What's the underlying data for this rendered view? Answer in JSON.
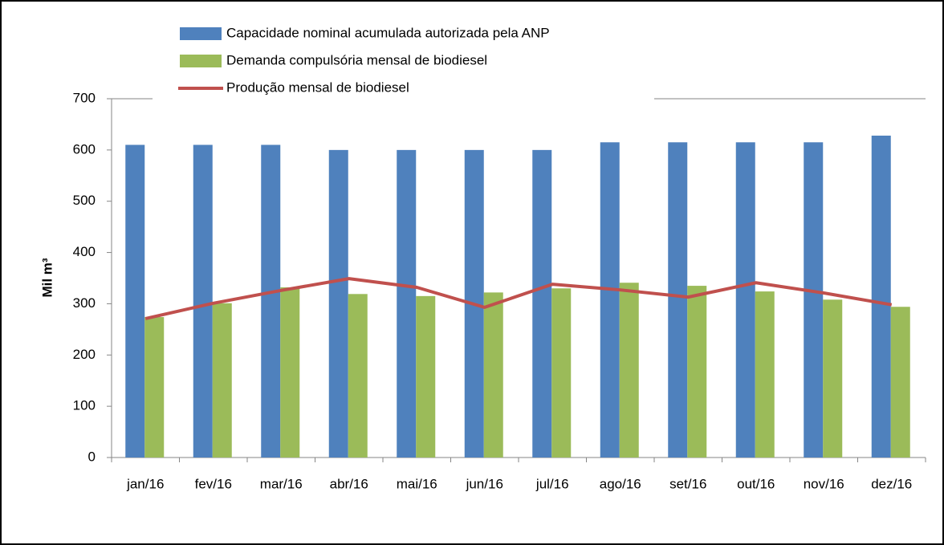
{
  "chart_data": {
    "type": "bar",
    "y_label": "Mil m³",
    "categories": [
      "jan/16",
      "fev/16",
      "mar/16",
      "abr/16",
      "mai/16",
      "jun/16",
      "jul/16",
      "ago/16",
      "set/16",
      "out/16",
      "nov/16",
      "dez/16"
    ],
    "series": [
      {
        "name": "Capacidade nominal acumulada autorizada pela ANP",
        "type": "bar",
        "color": "#4f81bd",
        "values": [
          610,
          610,
          610,
          600,
          600,
          600,
          600,
          615,
          615,
          615,
          615,
          628
        ]
      },
      {
        "name": "Demanda compulsória mensal de biodiesel",
        "type": "bar",
        "color": "#9bbb59",
        "values": [
          274,
          301,
          332,
          319,
          315,
          322,
          330,
          341,
          335,
          324,
          308,
          294
        ]
      },
      {
        "name": "Produção mensal de biodiesel",
        "type": "line",
        "color": "#c0504d",
        "values": [
          271,
          301,
          326,
          349,
          332,
          293,
          338,
          327,
          313,
          341,
          321,
          298
        ]
      }
    ],
    "ylim": [
      0,
      700
    ],
    "yticks": [
      0,
      100,
      200,
      300,
      400,
      500,
      600,
      700
    ]
  }
}
